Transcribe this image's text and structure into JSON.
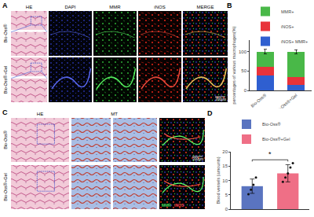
{
  "figure": {
    "panel_A": {
      "label": "A",
      "columns": [
        "HE",
        "DAPI",
        "MMR",
        "iNOS",
        "MERGE"
      ],
      "rows": [
        "Bio-Oss®",
        "Bio-Oss®+Gel"
      ],
      "scale_bar": "200μm"
    },
    "panel_B": {
      "label": "B"
    },
    "panel_C": {
      "label": "C",
      "columns": [
        "HE",
        "MT"
      ],
      "rows": [
        "Bio-Oss®",
        "Bio-Oss®+Gel"
      ],
      "merge_labels": [
        {
          "text": "MMR",
          "color": "#3fd24a"
        },
        {
          "text": "iNOS",
          "color": "#ff3a30"
        }
      ],
      "scale_bar": "200μm"
    },
    "panel_D": {
      "label": "D"
    }
  },
  "chart_data": [
    {
      "type": "bar",
      "stacked": true,
      "categories": [
        "Bio-Oss®",
        "Bio-Oss®+Gel"
      ],
      "ylabel": "percentages of various macrophages(%)",
      "ylim": [
        0,
        130
      ],
      "yticks": [
        0,
        50,
        100
      ],
      "legend": "top",
      "series": [
        {
          "name": "iNOS+ MMR+",
          "color": "#2f5fd0",
          "values": [
            38,
            15
          ]
        },
        {
          "name": "iNOS+",
          "color": "#e8333a",
          "values": [
            22,
            20
          ]
        },
        {
          "name": "MMR+",
          "color": "#49b848",
          "values": [
            40,
            65
          ],
          "errors": [
            6,
            5
          ]
        }
      ]
    },
    {
      "type": "bar",
      "categories": [
        null,
        null
      ],
      "tick_labels": "y",
      "ylabel": "Blood vessels (amounts)",
      "ylim": [
        0,
        20
      ],
      "yticks": [
        0,
        5,
        10,
        15,
        20
      ],
      "legend": "top",
      "annotations": [
        {
          "text": "*"
        }
      ],
      "series": [
        {
          "name": "Bio-Oss®",
          "color": "#5a74c0",
          "values": [
            8,
            null
          ],
          "errors": [
            2.5,
            null
          ],
          "points": [
            [
              5.2,
              6.8,
              8.5,
              11
            ],
            []
          ]
        },
        {
          "name": "Bio-Oss®+Gel",
          "color": "#ef6f86",
          "values": [
            null,
            12.5
          ],
          "errors": [
            null,
            3
          ],
          "points": [
            [],
            [
              9.5,
              11,
              12.5,
              14.5,
              16
            ]
          ]
        }
      ]
    }
  ]
}
